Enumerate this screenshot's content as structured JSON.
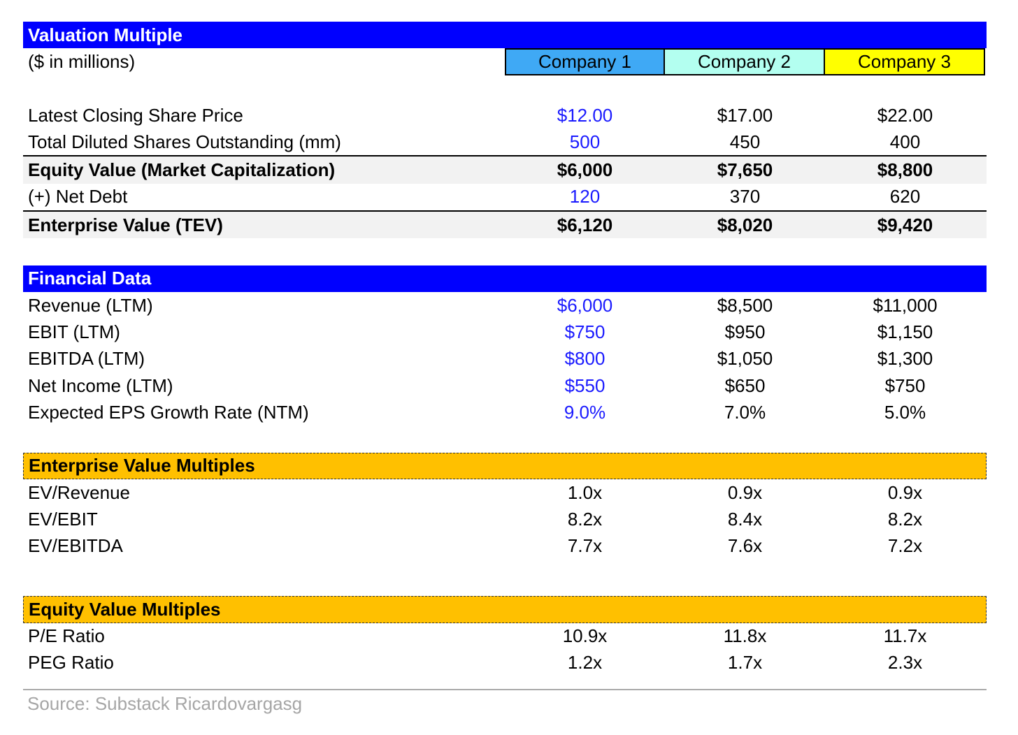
{
  "title": "Valuation Multiple",
  "units": "($ in millions)",
  "companies": [
    "Company 1",
    "Company 2",
    "Company 3"
  ],
  "company_colors": [
    "#3fa9f5",
    "#b3fff0",
    "#ffff00"
  ],
  "valuation": {
    "share_price": {
      "label": "Latest Closing Share Price",
      "v": [
        "$12.00",
        "$17.00",
        "$22.00"
      ]
    },
    "shares": {
      "label": "Total Diluted Shares Outstanding (mm)",
      "v": [
        "500",
        "450",
        "400"
      ]
    },
    "equity_value": {
      "label": "Equity Value (Market Capitalization)",
      "v": [
        "$6,000",
        "$7,650",
        "$8,800"
      ]
    },
    "net_debt": {
      "label": "(+) Net Debt",
      "v": [
        "120",
        "370",
        "620"
      ]
    },
    "tev": {
      "label": "Enterprise Value (TEV)",
      "v": [
        "$6,120",
        "$8,020",
        "$9,420"
      ]
    }
  },
  "financial": {
    "title": "Financial Data",
    "revenue": {
      "label": "Revenue (LTM)",
      "v": [
        "$6,000",
        "$8,500",
        "$11,000"
      ]
    },
    "ebit": {
      "label": "EBIT (LTM)",
      "v": [
        "$750",
        "$950",
        "$1,150"
      ]
    },
    "ebitda": {
      "label": "EBITDA (LTM)",
      "v": [
        "$800",
        "$1,050",
        "$1,300"
      ]
    },
    "net_income": {
      "label": "Net Income (LTM)",
      "v": [
        "$550",
        "$650",
        "$750"
      ]
    },
    "eps_growth": {
      "label": "Expected EPS Growth Rate (NTM)",
      "v": [
        "9.0%",
        "7.0%",
        "5.0%"
      ]
    }
  },
  "ev_multiples": {
    "title": "Enterprise Value Multiples",
    "ev_revenue": {
      "label": "EV/Revenue",
      "v": [
        "1.0x",
        "0.9x",
        "0.9x"
      ]
    },
    "ev_ebit": {
      "label": "EV/EBIT",
      "v": [
        "8.2x",
        "8.4x",
        "8.2x"
      ]
    },
    "ev_ebitda": {
      "label": "EV/EBITDA",
      "v": [
        "7.7x",
        "7.6x",
        "7.2x"
      ]
    }
  },
  "equity_multiples": {
    "title": "Equity Value Multiples",
    "pe": {
      "label": "P/E Ratio",
      "v": [
        "10.9x",
        "11.8x",
        "11.7x"
      ]
    },
    "peg": {
      "label": "PEG Ratio",
      "v": [
        "1.2x",
        "1.7x",
        "2.3x"
      ]
    }
  },
  "source": "Source: Substack Ricardovargasg"
}
